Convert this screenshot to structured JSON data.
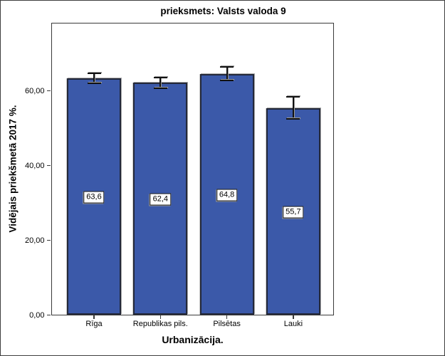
{
  "chart_data": {
    "type": "bar",
    "title": "prieksmets: Valsts valoda 9",
    "xlabel": "Urbanizācija.",
    "ylabel": "Vidējais priekšmetā 2017 %.",
    "categories": [
      "Rīga",
      "Republikas pils.",
      "Pilsētas",
      "Lauki"
    ],
    "values": [
      63.6,
      62.4,
      64.8,
      55.7
    ],
    "value_labels": [
      "63,6",
      "62,4",
      "64,8",
      "55,7"
    ],
    "error_bars": [
      1.3,
      1.5,
      1.8,
      3.0
    ],
    "yticks": [
      0,
      20,
      40,
      60
    ],
    "ytick_labels": [
      "0,00",
      "20,00",
      "40,00",
      "60,00"
    ],
    "ylim": [
      0,
      78.3
    ],
    "grid": false,
    "legend_position": "none",
    "bar_fill_color": "#3B59A9",
    "bar_border_color": "#232839",
    "error_bar_color": "#111111",
    "frame_color": "#3A3A3A",
    "background_color": "#FFFFFF"
  }
}
